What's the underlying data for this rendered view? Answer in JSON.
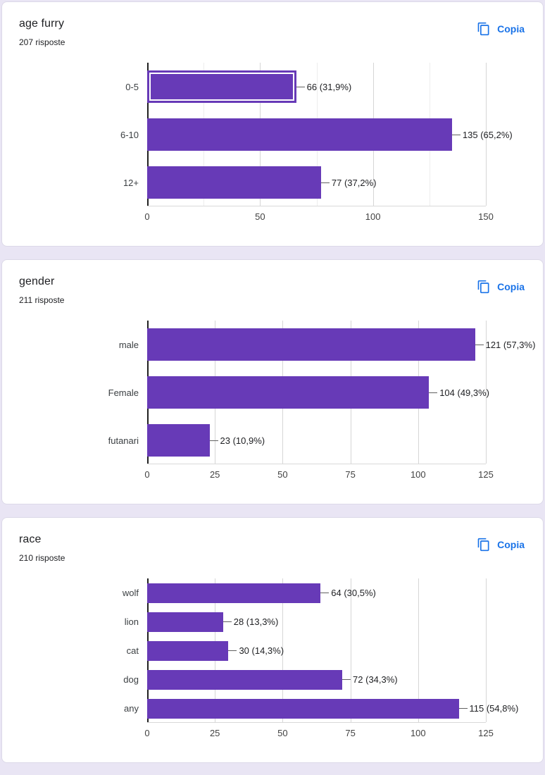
{
  "ui": {
    "copy_label": "Copia",
    "accent_blue": "#1a73e8",
    "bar_purple": "#673ab7",
    "page_background": "#e9e5f4"
  },
  "chart_data": [
    {
      "type": "bar",
      "orientation": "horizontal",
      "title": "age furry",
      "subtitle": "207 risposte",
      "categories": [
        "0-5",
        "6-10",
        "12+"
      ],
      "values": [
        66,
        135,
        77
      ],
      "value_labels": [
        "66 (31,9%)",
        "135 (65,2%)",
        "77 (37,2%)"
      ],
      "percentages": [
        31.9,
        65.2,
        37.2
      ],
      "xlim": [
        0,
        150
      ],
      "ticks": [
        0,
        50,
        100,
        150
      ],
      "minor_gridlines": [
        25,
        75,
        125
      ],
      "bar_color": "#673ab7",
      "selected_bar_index": 0,
      "grid": true,
      "legend": "none"
    },
    {
      "type": "bar",
      "orientation": "horizontal",
      "title": "gender",
      "subtitle": "211 risposte",
      "categories": [
        "male",
        "Female",
        "futanari"
      ],
      "values": [
        121,
        104,
        23
      ],
      "value_labels": [
        "121 (57,3%)",
        "104 (49,3%)",
        "23 (10,9%)"
      ],
      "percentages": [
        57.3,
        49.3,
        10.9
      ],
      "xlim": [
        0,
        125
      ],
      "ticks": [
        0,
        25,
        50,
        75,
        100,
        125
      ],
      "minor_gridlines": [],
      "bar_color": "#673ab7",
      "selected_bar_index": null,
      "grid": true,
      "legend": "none"
    },
    {
      "type": "bar",
      "orientation": "horizontal",
      "title": "race",
      "subtitle": "210 risposte",
      "categories": [
        "wolf",
        "lion",
        "cat",
        "dog",
        "any"
      ],
      "values": [
        64,
        28,
        30,
        72,
        115
      ],
      "value_labels": [
        "64 (30,5%)",
        "28 (13,3%)",
        "30 (14,3%)",
        "72 (34,3%)",
        "115 (54,8%)"
      ],
      "percentages": [
        30.5,
        13.3,
        14.3,
        34.3,
        54.8
      ],
      "xlim": [
        0,
        125
      ],
      "ticks": [
        0,
        25,
        50,
        75,
        100,
        125
      ],
      "minor_gridlines": [],
      "bar_color": "#673ab7",
      "selected_bar_index": null,
      "grid": true,
      "legend": "none"
    }
  ]
}
